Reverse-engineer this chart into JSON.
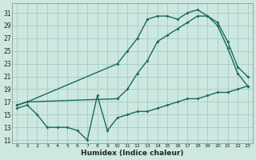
{
  "xlabel": "Humidex (Indice chaleur)",
  "background_color": "#cce8e0",
  "grid_color": "#aacfc8",
  "line_color": "#1a6b5a",
  "xlim": [
    -0.5,
    23.5
  ],
  "ylim": [
    10.5,
    32.5
  ],
  "yticks": [
    11,
    13,
    15,
    17,
    19,
    21,
    23,
    25,
    27,
    29,
    31
  ],
  "xticks": [
    0,
    1,
    2,
    3,
    4,
    5,
    6,
    7,
    8,
    9,
    10,
    11,
    12,
    13,
    14,
    15,
    16,
    17,
    18,
    19,
    20,
    21,
    22,
    23
  ],
  "line1_x": [
    0,
    1,
    10,
    11,
    12,
    13,
    14,
    15,
    16,
    17,
    18,
    19,
    20,
    21,
    22,
    23
  ],
  "line1_y": [
    16.5,
    17.0,
    23.0,
    25.0,
    27.0,
    30.0,
    30.5,
    30.5,
    30.0,
    31.0,
    31.5,
    30.5,
    29.0,
    25.5,
    21.5,
    19.5
  ],
  "line2_x": [
    0,
    1,
    10,
    11,
    12,
    13,
    14,
    15,
    16,
    17,
    18,
    19,
    20,
    21,
    22,
    23
  ],
  "line2_y": [
    16.5,
    17.0,
    17.5,
    19.0,
    21.5,
    23.5,
    26.5,
    27.5,
    28.5,
    29.5,
    30.5,
    30.5,
    29.5,
    26.5,
    22.5,
    21.0
  ],
  "line3_x": [
    0,
    1,
    2,
    3,
    4,
    5,
    6,
    7,
    8,
    9,
    10,
    11,
    12,
    13,
    14,
    15,
    16,
    17,
    18,
    19,
    20,
    21,
    22,
    23
  ],
  "line3_y": [
    16.0,
    16.5,
    15.0,
    13.0,
    13.0,
    13.0,
    12.5,
    11.0,
    18.0,
    12.5,
    14.5,
    15.0,
    15.5,
    15.5,
    16.0,
    16.5,
    17.0,
    17.5,
    17.5,
    18.0,
    18.5,
    18.5,
    19.0,
    19.5
  ]
}
